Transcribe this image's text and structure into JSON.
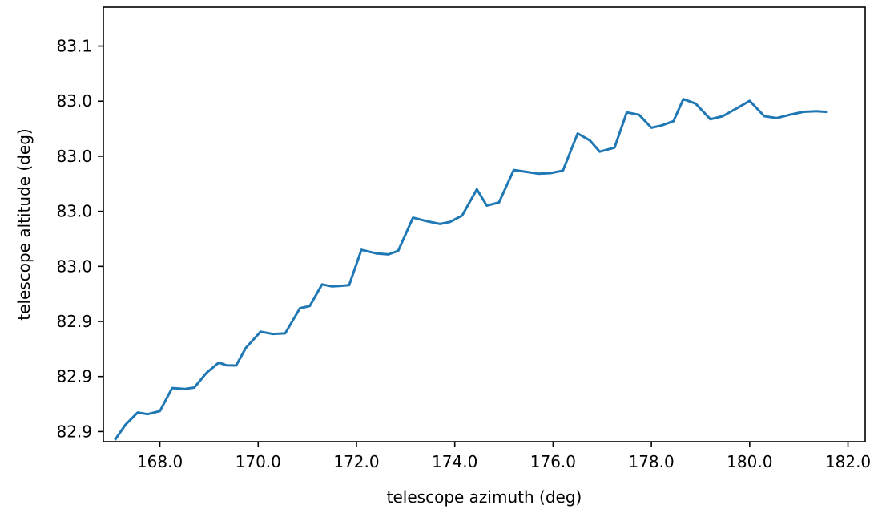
{
  "chart_data": {
    "type": "line",
    "title": "",
    "xlabel": "telescope azimuth (deg)",
    "ylabel": "telescope altitude (deg)",
    "xlim": [
      166.85,
      182.35
    ],
    "ylim": [
      82.8645,
      83.1012
    ],
    "xticks": [
      {
        "value": 168.0,
        "label": "168.0"
      },
      {
        "value": 170.0,
        "label": "170.0"
      },
      {
        "value": 172.0,
        "label": "172.0"
      },
      {
        "value": 174.0,
        "label": "174.0"
      },
      {
        "value": 176.0,
        "label": "176.0"
      },
      {
        "value": 178.0,
        "label": "178.0"
      },
      {
        "value": 180.0,
        "label": "180.0"
      },
      {
        "value": 182.0,
        "label": "182.0"
      }
    ],
    "yticks": [
      {
        "value": 82.87,
        "label": "82.9"
      },
      {
        "value": 82.9,
        "label": "82.9"
      },
      {
        "value": 82.93,
        "label": "82.9"
      },
      {
        "value": 82.96,
        "label": "83.0"
      },
      {
        "value": 82.99,
        "label": "83.0"
      },
      {
        "value": 83.02,
        "label": "83.0"
      },
      {
        "value": 83.05,
        "label": "83.0"
      },
      {
        "value": 83.08,
        "label": "83.1"
      }
    ],
    "grid": false,
    "legend": "none",
    "colors": {
      "line": "#1f77b4",
      "axes": "#000000",
      "background": "#ffffff"
    },
    "series": [
      {
        "x": [
          167.1,
          167.3,
          167.55,
          167.75,
          168.0,
          168.25,
          168.5,
          168.7,
          168.95,
          169.2,
          169.35,
          169.55,
          169.75,
          170.05,
          170.3,
          170.55,
          170.85,
          171.05,
          171.3,
          171.5,
          171.65,
          171.85,
          172.1,
          172.4,
          172.65,
          172.85,
          173.15,
          173.45,
          173.7,
          173.9,
          174.15,
          174.45,
          174.65,
          174.9,
          175.2,
          175.45,
          175.7,
          175.95,
          176.2,
          176.5,
          176.75,
          176.95,
          177.25,
          177.5,
          177.75,
          178.0,
          178.2,
          178.45,
          178.65,
          178.9,
          179.2,
          179.45,
          179.75,
          180.0,
          180.3,
          180.55,
          180.8,
          181.1,
          181.35,
          181.55
        ],
        "y": [
          82.866,
          82.8737,
          82.8804,
          82.8795,
          82.8812,
          82.8937,
          82.8932,
          82.894,
          82.902,
          82.9076,
          82.9061,
          82.906,
          82.9156,
          82.9244,
          82.9232,
          82.9235,
          82.9372,
          82.9384,
          82.9502,
          82.9491,
          82.9493,
          82.9498,
          82.969,
          82.9671,
          82.9665,
          82.9685,
          82.9865,
          82.9845,
          82.9831,
          82.9842,
          82.9877,
          83.002,
          82.9931,
          82.9948,
          83.0125,
          83.0115,
          83.0105,
          83.0108,
          83.0122,
          83.0324,
          83.0286,
          83.0225,
          83.0247,
          83.0439,
          83.0426,
          83.0355,
          83.0367,
          83.0391,
          83.0511,
          83.0487,
          83.0402,
          83.0418,
          83.0463,
          83.0502,
          83.0418,
          83.0408,
          83.0425,
          83.0442,
          83.0445,
          83.0442
        ]
      }
    ]
  }
}
